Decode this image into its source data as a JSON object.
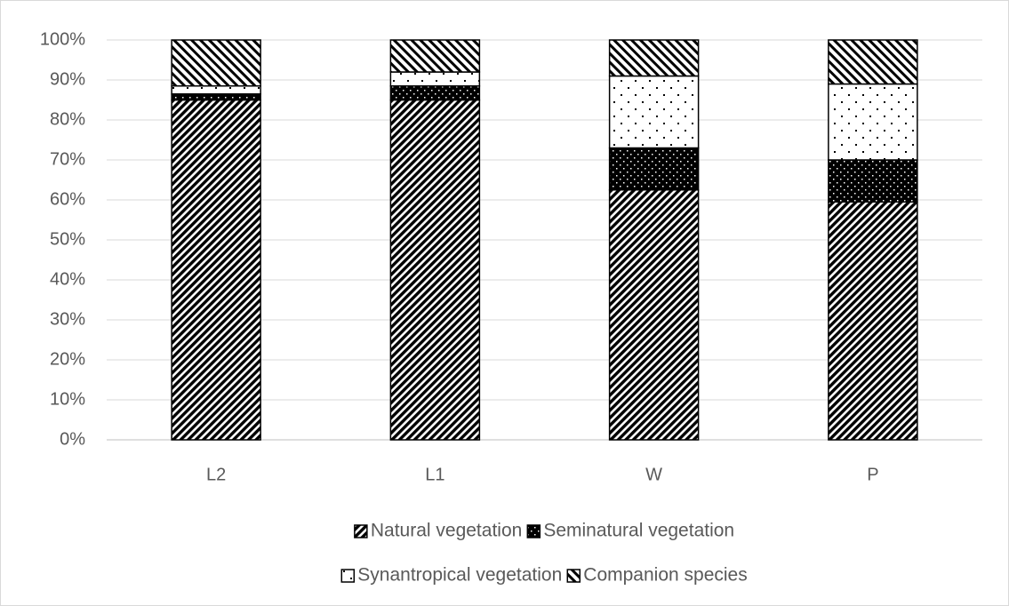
{
  "chart_data": {
    "type": "stacked_bar",
    "categories": [
      "L2",
      "L1",
      "W",
      "P"
    ],
    "series": [
      {
        "name": "Natural vegetation",
        "pattern": "dense-hatch",
        "values": [
          85,
          85,
          62.5,
          59.5
        ]
      },
      {
        "name": "Seminatural vegetation",
        "pattern": "dots-on-black",
        "values": [
          1.5,
          3.5,
          10.5,
          10.5
        ]
      },
      {
        "name": "Synantropical vegetation",
        "pattern": "dots-on-white",
        "values": [
          2,
          3.5,
          18,
          19
        ]
      },
      {
        "name": "Companion species",
        "pattern": "wide-hatch",
        "values": [
          11.5,
          8,
          9,
          11
        ]
      }
    ],
    "ylim": [
      0,
      100
    ],
    "yticks": [
      {
        "value": 0,
        "label": "0%"
      },
      {
        "value": 10,
        "label": "10%"
      },
      {
        "value": 20,
        "label": "20%"
      },
      {
        "value": 30,
        "label": "30%"
      },
      {
        "value": 40,
        "label": "40%"
      },
      {
        "value": 50,
        "label": "50%"
      },
      {
        "value": 60,
        "label": "60%"
      },
      {
        "value": 70,
        "label": "70%"
      },
      {
        "value": 80,
        "label": "80%"
      },
      {
        "value": 90,
        "label": "90%"
      },
      {
        "value": 100,
        "label": "100%"
      }
    ],
    "grid": true,
    "legend": "bottom"
  }
}
